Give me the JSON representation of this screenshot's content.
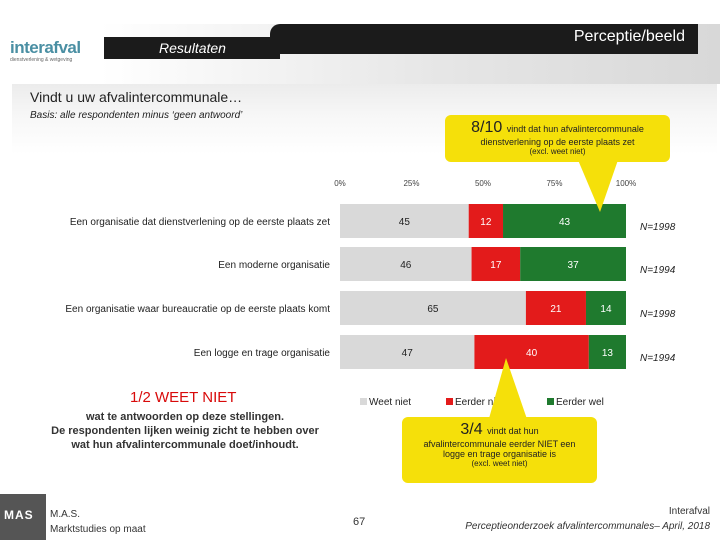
{
  "header": {
    "logo_text": "interafval",
    "logo_tagline": "dienstverlening & wetgeving",
    "section_label": "Resultaten",
    "title_right": "Perceptie/beeld"
  },
  "question": "Vindt u uw afvalintercommunale…",
  "basis": "Basis: alle respondenten minus ‘geen antwoord’",
  "callout_top": {
    "fraction": "8/10",
    "line1": "vindt dat hun afvalintercommunale",
    "line2": "dienstverlening op de eerste plaats zet",
    "line3": "(excl. weet niet)"
  },
  "callout_bottom": {
    "fraction": "3/4",
    "line1": "vindt dat hun",
    "line2": "afvalintercommunale eerder NIET een",
    "line3": "logge en trage organisatie is",
    "line4": "(excl. weet niet)"
  },
  "left_note": {
    "title": "1/2 WEET NIET",
    "line1": "wat te antwoorden op deze stellingen.",
    "line2": "De respondenten lijken weinig zicht te hebben over",
    "line3": "wat hun afvalintercommunale doet/inhoudt."
  },
  "chart_data": {
    "type": "bar",
    "orientation": "horizontal",
    "stacked": true,
    "categories": [
      "Een organisatie dat dienstverlening op de eerste plaats zet",
      "Een moderne organisatie",
      "Een organisatie waar bureaucratie op de eerste plaats komt",
      "Een logge en trage organisatie"
    ],
    "series": [
      {
        "name": "Weet niet",
        "values": [
          45,
          46,
          65,
          47
        ],
        "color": "#d9d9d9",
        "label_color": "#222222"
      },
      {
        "name": "Eerder niet",
        "values": [
          12,
          17,
          21,
          40
        ],
        "color": "#e31b1b",
        "label_color": "#ffffff"
      },
      {
        "name": "Eerder wel",
        "values": [
          43,
          37,
          14,
          13
        ],
        "color": "#1f7a2e",
        "label_color": "#ffffff"
      }
    ],
    "n_labels": [
      "N=1998",
      "N=1994",
      "N=1998",
      "N=1994"
    ],
    "xlim": [
      0,
      100
    ],
    "xticks": [
      "0%",
      "25%",
      "50%",
      "75%",
      "100%"
    ],
    "legend_position": "bottom"
  },
  "footer": {
    "logo_text": "MAS",
    "left_line1": "M.A.S.",
    "left_line2": "Marktstudies op maat",
    "page_number": "67",
    "right_line1": "Interafval",
    "right_line2": "Perceptieonderzoek afvalintercommunales– April, 2018"
  }
}
